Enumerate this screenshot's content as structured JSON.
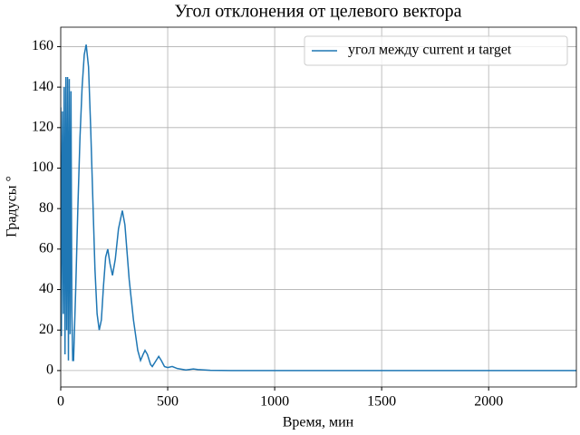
{
  "chart_data": {
    "type": "line",
    "title": "Угол отклонения от целевого вектора",
    "xlabel": "Время, мин",
    "ylabel": "Градусы °",
    "legend": "upper right",
    "grid": true,
    "xlim": [
      0,
      2410
    ],
    "ylim": [
      -8.1,
      169.6
    ],
    "xticks": [
      0,
      500,
      1000,
      1500,
      2000
    ],
    "yticks": [
      0,
      20,
      40,
      60,
      80,
      100,
      120,
      140,
      160
    ],
    "series": [
      {
        "name": "угол между current и target",
        "color": "#1f77b4",
        "x": [
          0,
          3,
          8,
          12,
          16,
          20,
          24,
          28,
          32,
          36,
          40,
          44,
          48,
          52,
          56,
          60,
          70,
          80,
          90,
          100,
          110,
          119,
          130,
          140,
          150,
          160,
          170,
          180,
          190,
          200,
          210,
          220,
          230,
          242,
          255,
          270,
          288,
          300,
          320,
          340,
          360,
          373,
          385,
          394,
          405,
          420,
          428,
          440,
          458,
          470,
          485,
          500,
          521,
          545,
          585,
          620,
          640,
          700,
          800,
          1200,
          2410
        ],
        "values": [
          130,
          17,
          128,
          28,
          140,
          8,
          145,
          20,
          145,
          5,
          144,
          18,
          138,
          30,
          5,
          5,
          40,
          80,
          115,
          140,
          156,
          161,
          150,
          120,
          85,
          50,
          28,
          20,
          25,
          42,
          56,
          60,
          53,
          47,
          55,
          70,
          79,
          72,
          45,
          25,
          10,
          5,
          8,
          10,
          8,
          3,
          2,
          4,
          7,
          5,
          2,
          1.5,
          2,
          1,
          0.3,
          0.8,
          0.5,
          0.1,
          0,
          0,
          0
        ]
      }
    ]
  }
}
